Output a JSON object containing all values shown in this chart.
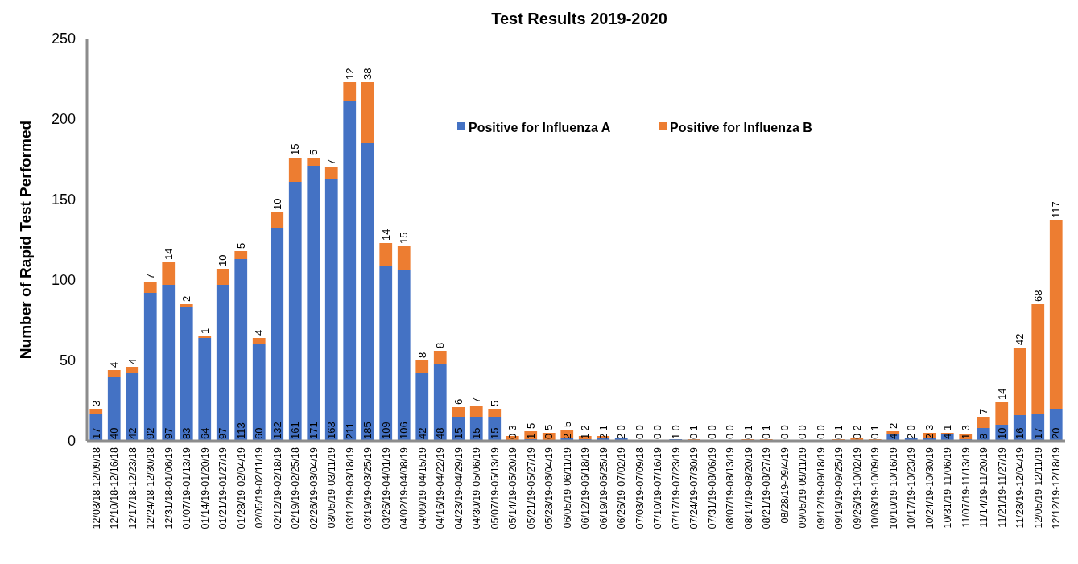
{
  "chart_data": {
    "type": "bar",
    "title": "Test Results 2019-2020",
    "ylabel": "Number of Rapid Test Performed",
    "categories": [
      "12/03/18-12/09/18",
      "12/10/18-12/16/18",
      "12/17/18-12/23/18",
      "12/24/18-12/30/18",
      "12/31/18-01/06/19",
      "01/07/19-01/13/19",
      "01/14/19-01/20/19",
      "01/21/19-01/27/19",
      "01/28/19-02/04/19",
      "02/05/19-02/11/19",
      "02/12/19-02/18/19",
      "02/19/19-02/25/18",
      "02/26/19-03/04/19",
      "03/05/19-03/11/19",
      "03/12/19-03/18/19",
      "03/19/19-03/25/19",
      "03/26/19-04/01/19",
      "04/02/19-04/08/19",
      "04/09/19-04/15/19",
      "04/16/19-04/22/19",
      "04/23/19-04/29/19",
      "04/30/19-05/06/19",
      "05/07/19-05/13/19",
      "05/14/19-05/20/19",
      "05/21/19-05/27/19",
      "05/28/19-06/04/19",
      "06/05/19-06/11/19",
      "06/12/19-06/18/19",
      "06/19/19-06/25/19",
      "06/26/19-07/02/19",
      "07/03/19-07/09/18",
      "07/10/19-07/16/19",
      "07/17/19-07/23/19",
      "07/24/19-07/30/19",
      "07/31/19-08/06/19",
      "08/07/19-08/13/19",
      "08/14/19-08/20/19",
      "08/21/19-08/27/19",
      "08/28/19-09/4/19",
      "09/05/19-09/11/19",
      "09/12/19-09/18/19",
      "09/19/19-09/25/19",
      "09/26/19-10/02/19",
      "10/03/19-10/09/19",
      "10/10/19-10/16/19",
      "10/17/19-10/23/19",
      "10/24/19-10/30/19",
      "10/31/19-11/06/19",
      "11/07/19-11/13/19",
      "11/14/19-11/20/19",
      "11/21/19-11/27/19",
      "11/28/19-12/04/19",
      "12/05/19-12/11/19",
      "12/12/19-12/18/19"
    ],
    "series": [
      {
        "name": "Positive for Influenza A",
        "color": "#4472c4",
        "values": [
          17,
          40,
          42,
          92,
          97,
          83,
          64,
          97,
          113,
          60,
          132,
          161,
          171,
          163,
          211,
          185,
          109,
          106,
          42,
          48,
          15,
          15,
          15,
          0,
          1,
          0,
          2,
          1,
          2,
          2,
          0,
          0,
          1,
          0,
          0,
          0,
          0,
          0,
          0,
          0,
          0,
          0,
          0,
          0,
          4,
          2,
          2,
          4,
          1,
          8,
          10,
          16,
          17,
          20
        ]
      },
      {
        "name": "Positive for Influenza B",
        "color": "#ed7d31",
        "values": [
          3,
          4,
          4,
          7,
          14,
          2,
          1,
          10,
          5,
          4,
          10,
          15,
          5,
          7,
          12,
          38,
          14,
          15,
          8,
          8,
          6,
          7,
          5,
          3,
          5,
          5,
          5,
          2,
          1,
          0,
          0,
          0,
          0,
          1,
          0,
          0,
          1,
          1,
          0,
          0,
          0,
          1,
          2,
          1,
          2,
          0,
          3,
          1,
          3,
          7,
          14,
          42,
          68,
          117
        ]
      }
    ],
    "stacked": true,
    "data_labels": true,
    "ylim": [
      0,
      250
    ],
    "yticks": [
      0,
      50,
      100,
      150,
      200,
      250
    ],
    "grid": false,
    "legend": "top right"
  }
}
